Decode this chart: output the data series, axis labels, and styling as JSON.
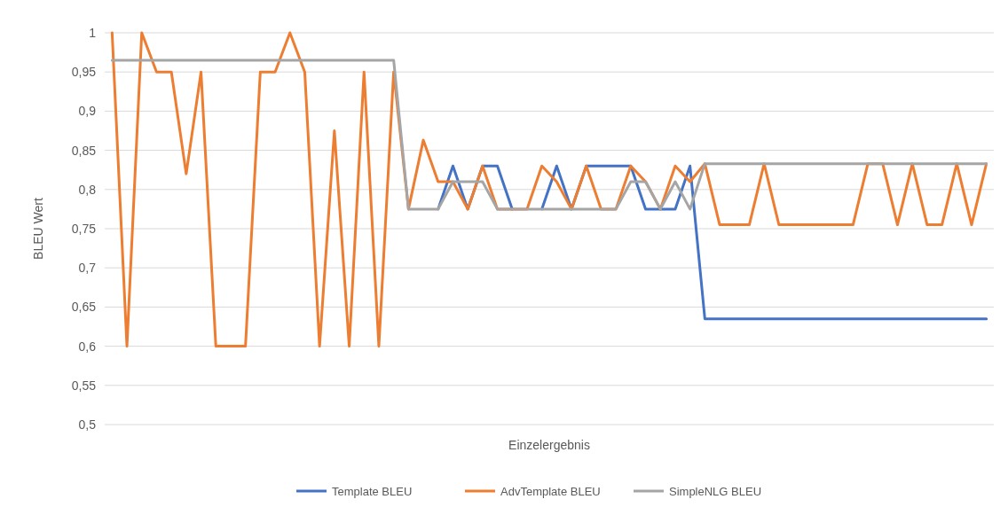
{
  "chart_data": {
    "type": "line",
    "xlabel": "Einzelergebnis",
    "ylabel": "BLEU Wert",
    "categories": [
      null,
      null,
      null,
      null,
      null,
      null,
      null,
      null,
      null,
      null,
      null,
      null,
      null,
      null,
      null,
      null,
      null,
      null,
      null,
      null,
      null,
      null,
      null,
      null,
      null,
      null,
      null,
      null,
      null,
      null,
      null,
      null,
      null,
      null,
      null,
      null,
      null,
      null,
      null,
      null,
      null,
      null,
      null,
      null,
      null,
      null,
      null,
      null,
      null,
      null,
      null,
      null,
      null,
      null,
      null,
      null,
      null,
      null,
      null,
      null
    ],
    "series": [
      {
        "name": "Template BLEU",
        "color": "#4472c4",
        "values": [
          null,
          null,
          null,
          null,
          null,
          null,
          null,
          null,
          null,
          null,
          null,
          null,
          null,
          null,
          null,
          null,
          null,
          null,
          null,
          null,
          null,
          null,
          0.775,
          0.83,
          0.775,
          0.83,
          0.83,
          0.775,
          null,
          0.775,
          0.83,
          0.775,
          0.83,
          0.83,
          0.83,
          0.83,
          0.775,
          0.775,
          0.775,
          0.83,
          0.635,
          0.635,
          0.635,
          0.635,
          0.635,
          0.635,
          0.635,
          0.635,
          0.635,
          0.635,
          0.635,
          0.635,
          0.635,
          0.635,
          0.635,
          0.635,
          0.635,
          0.635,
          0.635,
          0.635
        ]
      },
      {
        "name": "AdvTemplate BLEU",
        "color": "#ed7d31",
        "values": [
          1,
          0.6,
          1,
          0.95,
          0.95,
          0.82,
          0.95,
          0.6,
          0.6,
          0.6,
          0.95,
          0.95,
          1,
          0.95,
          0.6,
          0.875,
          0.6,
          0.95,
          0.6,
          0.95,
          0.775,
          0.863,
          0.81,
          0.81,
          0.775,
          0.83,
          0.775,
          0.775,
          0.775,
          0.83,
          0.81,
          0.775,
          0.83,
          0.775,
          0.775,
          0.83,
          0.81,
          0.775,
          0.83,
          0.81,
          0.833,
          0.755,
          0.755,
          0.755,
          0.833,
          0.755,
          0.755,
          0.755,
          0.755,
          0.755,
          0.755,
          0.833,
          0.833,
          0.755,
          0.833,
          0.755,
          0.755,
          0.833,
          0.755,
          0.833
        ]
      },
      {
        "name": "SimpleNLG BLEU",
        "color": "#a5a5a5",
        "values": [
          0.965,
          0.965,
          0.965,
          0.965,
          0.965,
          0.965,
          0.965,
          0.965,
          0.965,
          0.965,
          0.965,
          0.965,
          0.965,
          0.965,
          0.965,
          0.965,
          0.965,
          0.965,
          0.965,
          0.965,
          0.775,
          0.775,
          0.775,
          0.81,
          0.81,
          0.81,
          0.775,
          0.775,
          0.775,
          0.775,
          0.775,
          0.775,
          0.775,
          0.775,
          0.775,
          0.81,
          0.81,
          0.775,
          0.81,
          0.775,
          0.833,
          0.833,
          0.833,
          0.833,
          0.833,
          0.833,
          0.833,
          0.833,
          0.833,
          0.833,
          0.833,
          0.833,
          0.833,
          0.833,
          0.833,
          0.833,
          0.833,
          0.833,
          0.833,
          0.833
        ]
      }
    ],
    "ylim": [
      0.5,
      1
    ],
    "yticks": [
      {
        "value": 0.5,
        "label": "0,5"
      },
      {
        "value": 0.55,
        "label": "0,55"
      },
      {
        "value": 0.6,
        "label": "0,6"
      },
      {
        "value": 0.65,
        "label": "0,65"
      },
      {
        "value": 0.7,
        "label": "0,7"
      },
      {
        "value": 0.75,
        "label": "0,75"
      },
      {
        "value": 0.8,
        "label": "0,8"
      },
      {
        "value": 0.85,
        "label": "0,85"
      },
      {
        "value": 0.9,
        "label": "0,9"
      },
      {
        "value": 0.95,
        "label": "0,95"
      },
      {
        "value": 1,
        "label": "1"
      }
    ],
    "grid": "y",
    "legend": "bottom",
    "marker": "none",
    "line_style": "solid"
  }
}
